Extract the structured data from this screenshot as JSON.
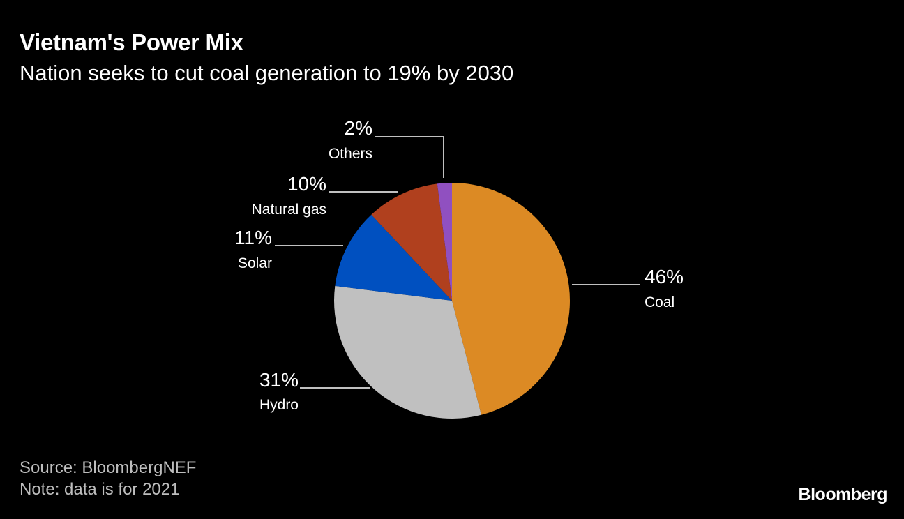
{
  "title": "Vietnam's Power Mix",
  "subtitle": "Nation seeks to cut coal generation to 19% by 2030",
  "footer": {
    "source": "Source: BloombergNEF",
    "note": "Note: data is for 2021",
    "brand": "Bloomberg"
  },
  "chart_data": {
    "type": "pie",
    "title": "Vietnam's Power Mix",
    "subtitle": "Nation seeks to cut coal generation to 19% by 2030",
    "slices": [
      {
        "name": "Coal",
        "value": 46,
        "label": "46%",
        "color": "#dc8a24"
      },
      {
        "name": "Hydro",
        "value": 31,
        "label": "31%",
        "color": "#c0c0c0"
      },
      {
        "name": "Solar",
        "value": 11,
        "label": "11%",
        "color": "#0050c0"
      },
      {
        "name": "Natural gas",
        "value": 10,
        "label": "10%",
        "color": "#b0401e"
      },
      {
        "name": "Others",
        "value": 2,
        "label": "2%",
        "color": "#9050c0"
      }
    ]
  }
}
